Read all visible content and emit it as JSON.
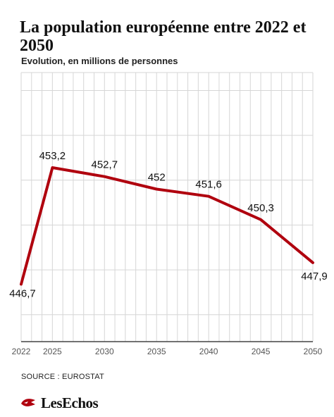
{
  "header": {
    "title": "La population européenne entre 2022 et 2050",
    "subtitle": "Evolution, en millions de personnes"
  },
  "footer": {
    "source": "SOURCE : EUROSTAT",
    "brand": "LesEchos"
  },
  "chart_data": {
    "type": "line",
    "title": "La population européenne entre 2022 et 2050",
    "subtitle": "Evolution, en millions de personnes",
    "xlabel": "",
    "ylabel": "",
    "x": [
      2022,
      2025,
      2030,
      2035,
      2040,
      2045,
      2050
    ],
    "x_ticks": [
      "2022",
      "2025",
      "2030",
      "2035",
      "2040",
      "2045",
      "2050"
    ],
    "series": [
      {
        "values": [
          446.7,
          453.2,
          452.7,
          452,
          451.6,
          450.3,
          447.9
        ],
        "labels": [
          "446,7",
          "453,2",
          "452,7",
          "452",
          "451,6",
          "450,3",
          "447,9"
        ],
        "color": "#b0000e"
      }
    ],
    "xlim": [
      2022,
      2050
    ],
    "ylim": [
      443.5,
      458.5
    ],
    "grid": true,
    "legend": "none"
  }
}
